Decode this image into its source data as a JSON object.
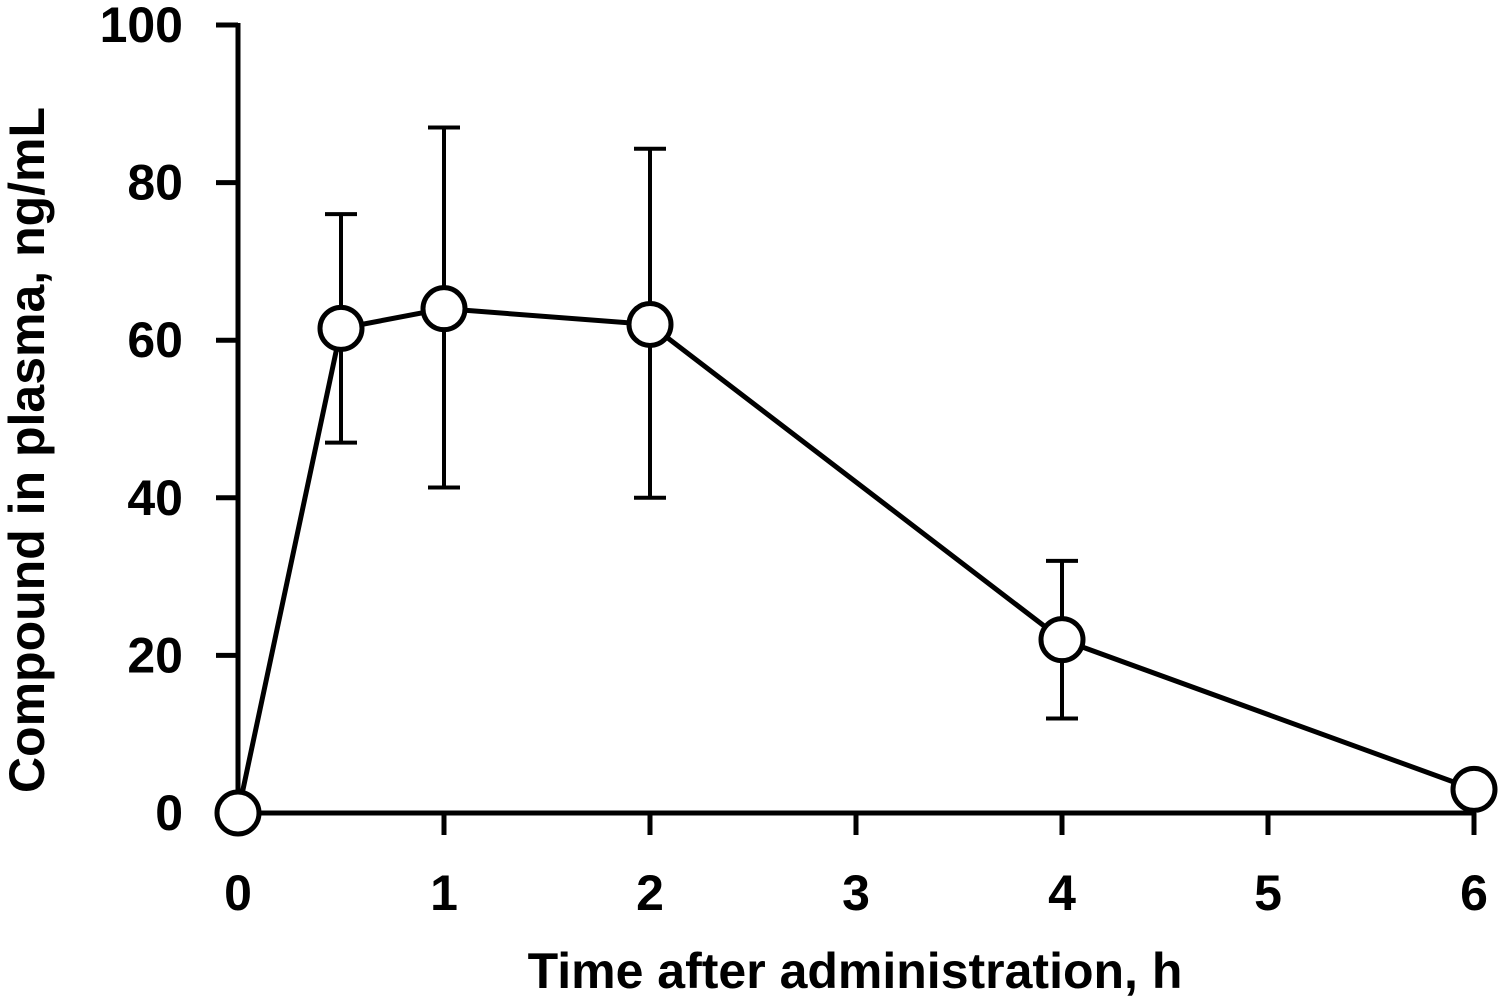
{
  "chart_data": {
    "type": "line",
    "title": "",
    "xlabel": "Time after administration, h",
    "ylabel": "Compound in plasma, ng/mL",
    "xlim": [
      0,
      6
    ],
    "ylim": [
      0,
      100
    ],
    "xticks": [
      0,
      1,
      2,
      3,
      4,
      5,
      6
    ],
    "xtick_labels": [
      "0",
      "1",
      "2",
      "3",
      "4",
      "5",
      "6"
    ],
    "yticks": [
      0,
      20,
      40,
      60,
      80,
      100
    ],
    "ytick_labels": [
      "0",
      "20",
      "40",
      "60",
      "80",
      "100"
    ],
    "grid": false,
    "legend": "none",
    "marker": "open-circle",
    "line_color": "#000000",
    "marker_fill": "#ffffff",
    "series": [
      {
        "x": [
          0,
          0.5,
          1,
          2,
          4,
          6
        ],
        "y": [
          0,
          61.5,
          64,
          62,
          22,
          3
        ],
        "error_upper": [
          null,
          76,
          87,
          84.3,
          32,
          null
        ],
        "error_lower": [
          null,
          47,
          41.3,
          40,
          12,
          null
        ]
      }
    ]
  }
}
